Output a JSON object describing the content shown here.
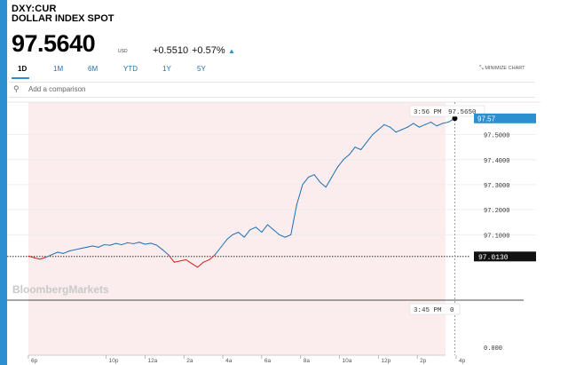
{
  "header": {
    "ticker": "DXY:CUR",
    "name": "DOLLAR INDEX SPOT",
    "price": "97.5640",
    "currency": "USD",
    "change": "+0.5510",
    "change_pct": "+0.57%"
  },
  "tabs": [
    {
      "label": "1D",
      "active": true
    },
    {
      "label": "1M",
      "active": false
    },
    {
      "label": "6M",
      "active": false
    },
    {
      "label": "YTD",
      "active": false
    },
    {
      "label": "1Y",
      "active": false
    },
    {
      "label": "5Y",
      "active": false
    }
  ],
  "minimize_label": "MINIMIZE CHART",
  "comparison": {
    "placeholder": "Add a comparison"
  },
  "watermark": "BloombergMarkets",
  "tooltip_top": {
    "time": "3:56 PM",
    "value": "97.5650"
  },
  "tooltip_bottom": {
    "time": "3:45 PM",
    "value": "0"
  },
  "current_tag": "97.57",
  "previous_close_tag": "97.0130",
  "bottom_label": "0.000",
  "colors": {
    "accent": "#2b8fd0",
    "line_up": "#1d6fb1",
    "line_down": "#d02020",
    "fill": "#fbeded"
  },
  "chart_data": {
    "type": "line",
    "previous_close": 97.013,
    "last_value": 97.565,
    "ylim": [
      96.92,
      97.63
    ],
    "yticks": [
      "97.5000",
      "97.4000",
      "97.3000",
      "97.2000",
      "97.1000"
    ],
    "yticks_values": [
      97.5,
      97.4,
      97.3,
      97.2,
      97.1
    ],
    "xticks": [
      "6p",
      "10p",
      "12a",
      "2a",
      "4a",
      "6a",
      "8a",
      "10a",
      "12p",
      "2p",
      "4p"
    ],
    "x_hours": [
      0,
      4,
      6,
      8,
      10,
      12,
      14,
      16,
      18,
      20,
      22
    ],
    "end_hour": 21.93,
    "series": [
      {
        "x": [
          0,
          0.3,
          0.6,
          0.9,
          1.2,
          1.5,
          1.8,
          2.1,
          2.4,
          2.7,
          3.0,
          3.3,
          3.6,
          3.9,
          4.2,
          4.5,
          4.8,
          5.1,
          5.4,
          5.7,
          6.0,
          6.3,
          6.6,
          6.9,
          7.2,
          7.5,
          7.8,
          8.1,
          8.4,
          8.7,
          9.0,
          9.3,
          9.6,
          9.9,
          10.2,
          10.5,
          10.8,
          11.1,
          11.4,
          11.7,
          12.0,
          12.3,
          12.6,
          12.9,
          13.2,
          13.5,
          13.8,
          14.1,
          14.4,
          14.7,
          15.0,
          15.3,
          15.6,
          15.9,
          16.2,
          16.5,
          16.8,
          17.1,
          17.4,
          17.7,
          18.0,
          18.3,
          18.6,
          18.9,
          19.2,
          19.5,
          19.8,
          20.1,
          20.4,
          20.7,
          21.0,
          21.3,
          21.6,
          21.93
        ],
        "y": [
          97.015,
          97.008,
          97.002,
          97.01,
          97.02,
          97.03,
          97.025,
          97.035,
          97.04,
          97.045,
          97.05,
          97.055,
          97.05,
          97.06,
          97.058,
          97.065,
          97.06,
          97.068,
          97.064,
          97.07,
          97.062,
          97.066,
          97.058,
          97.04,
          97.02,
          96.99,
          96.995,
          97.0,
          96.985,
          96.97,
          96.99,
          97.0,
          97.02,
          97.05,
          97.08,
          97.1,
          97.11,
          97.09,
          97.12,
          97.13,
          97.11,
          97.14,
          97.12,
          97.1,
          97.09,
          97.1,
          97.22,
          97.3,
          97.33,
          97.34,
          97.31,
          97.29,
          97.33,
          97.37,
          97.4,
          97.42,
          97.45,
          97.44,
          97.47,
          97.5,
          97.52,
          97.54,
          97.53,
          97.51,
          97.52,
          97.53,
          97.545,
          97.53,
          97.54,
          97.55,
          97.535,
          97.545,
          97.55,
          97.565
        ]
      }
    ]
  }
}
